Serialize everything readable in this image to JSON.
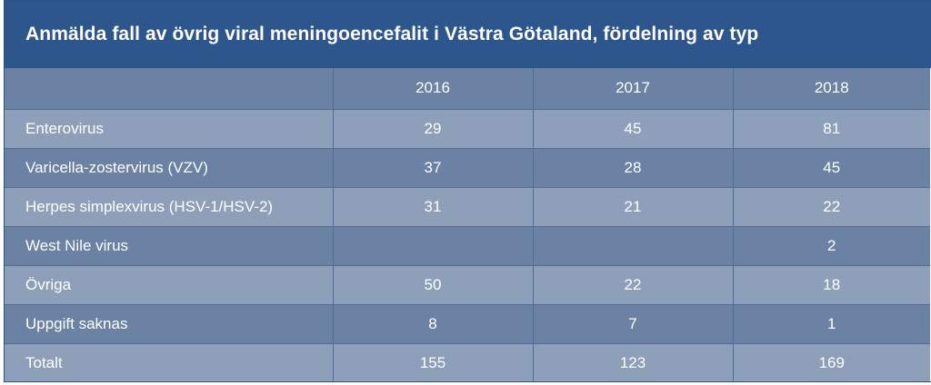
{
  "title": "Anmälda fall av övrig viral meningoencefalit i Västra Götaland, fördelning av typ",
  "table": {
    "columns": [
      "",
      "2016",
      "2017",
      "2018"
    ],
    "rows": [
      {
        "label": "Enterovirus",
        "values": [
          "29",
          "45",
          "81"
        ]
      },
      {
        "label": "Varicella-zostervirus (VZV)",
        "values": [
          "37",
          "28",
          "45"
        ]
      },
      {
        "label": "Herpes simplexvirus (HSV-1/HSV-2)",
        "values": [
          "31",
          "21",
          "22"
        ]
      },
      {
        "label": "West Nile virus",
        "values": [
          "",
          "",
          "2"
        ]
      },
      {
        "label": "Övriga",
        "values": [
          "50",
          "22",
          "18"
        ]
      },
      {
        "label": "Uppgift saknas",
        "values": [
          "8",
          "7",
          "1"
        ]
      },
      {
        "label": "Totalt",
        "values": [
          "155",
          "123",
          "169"
        ]
      }
    ]
  },
  "colors": {
    "title_background": "#2d568c",
    "row_dark": "#6b82a5",
    "row_light": "#8e9fba",
    "text": "#ffffff"
  }
}
